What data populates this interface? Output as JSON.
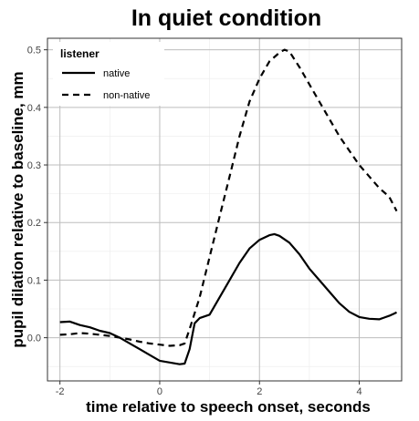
{
  "chart_data": {
    "type": "line",
    "title": "In quiet condition",
    "xlabel": "time relative to speech onset, seconds",
    "ylabel": "pupil dilation relative to baseline, mm",
    "xlim": [
      -2.25,
      4.85
    ],
    "ylim": [
      -0.075,
      0.52
    ],
    "xticks": [
      -2,
      0,
      2,
      4
    ],
    "yticks": [
      0.0,
      0.1,
      0.2,
      0.3,
      0.4,
      0.5
    ],
    "ytick_labels": [
      "0.0",
      "0.1",
      "0.2",
      "0.3",
      "0.4",
      "0.5"
    ],
    "grid": true,
    "legend": {
      "title": "listener",
      "position": "top-left",
      "entries": [
        {
          "label": "native",
          "style": "solid"
        },
        {
          "label": "non-native",
          "style": "dashed"
        }
      ]
    },
    "series": [
      {
        "name": "native",
        "style": "solid",
        "color": "#000000",
        "x": [
          -2.0,
          -1.8,
          -1.6,
          -1.4,
          -1.2,
          -1.0,
          -0.8,
          -0.6,
          -0.4,
          -0.2,
          0.0,
          0.2,
          0.4,
          0.5,
          0.6,
          0.7,
          0.8,
          1.0,
          1.2,
          1.4,
          1.6,
          1.8,
          2.0,
          2.2,
          2.3,
          2.4,
          2.6,
          2.8,
          3.0,
          3.2,
          3.4,
          3.6,
          3.8,
          4.0,
          4.2,
          4.4,
          4.5,
          4.6,
          4.7,
          4.75
        ],
        "y": [
          0.027,
          0.028,
          0.022,
          0.018,
          0.012,
          0.008,
          0.0,
          -0.01,
          -0.02,
          -0.03,
          -0.04,
          -0.043,
          -0.046,
          -0.045,
          -0.02,
          0.025,
          0.034,
          0.04,
          0.07,
          0.1,
          0.13,
          0.155,
          0.17,
          0.178,
          0.18,
          0.177,
          0.165,
          0.145,
          0.12,
          0.1,
          0.08,
          0.06,
          0.045,
          0.036,
          0.033,
          0.032,
          0.035,
          0.038,
          0.042,
          0.044
        ]
      },
      {
        "name": "non-native",
        "style": "dashed",
        "color": "#000000",
        "x": [
          -2.0,
          -1.8,
          -1.6,
          -1.4,
          -1.2,
          -1.0,
          -0.8,
          -0.6,
          -0.4,
          -0.2,
          0.0,
          0.2,
          0.4,
          0.5,
          0.6,
          0.8,
          1.0,
          1.2,
          1.4,
          1.6,
          1.8,
          2.0,
          2.2,
          2.4,
          2.5,
          2.6,
          2.8,
          3.0,
          3.2,
          3.4,
          3.6,
          3.8,
          4.0,
          4.2,
          4.4,
          4.6,
          4.75
        ],
        "y": [
          0.005,
          0.006,
          0.008,
          0.007,
          0.005,
          0.003,
          0.0,
          -0.003,
          -0.007,
          -0.01,
          -0.012,
          -0.014,
          -0.013,
          -0.01,
          0.015,
          0.07,
          0.14,
          0.21,
          0.28,
          0.35,
          0.41,
          0.45,
          0.48,
          0.495,
          0.5,
          0.497,
          0.47,
          0.44,
          0.41,
          0.38,
          0.35,
          0.325,
          0.3,
          0.28,
          0.26,
          0.245,
          0.22
        ]
      }
    ]
  }
}
